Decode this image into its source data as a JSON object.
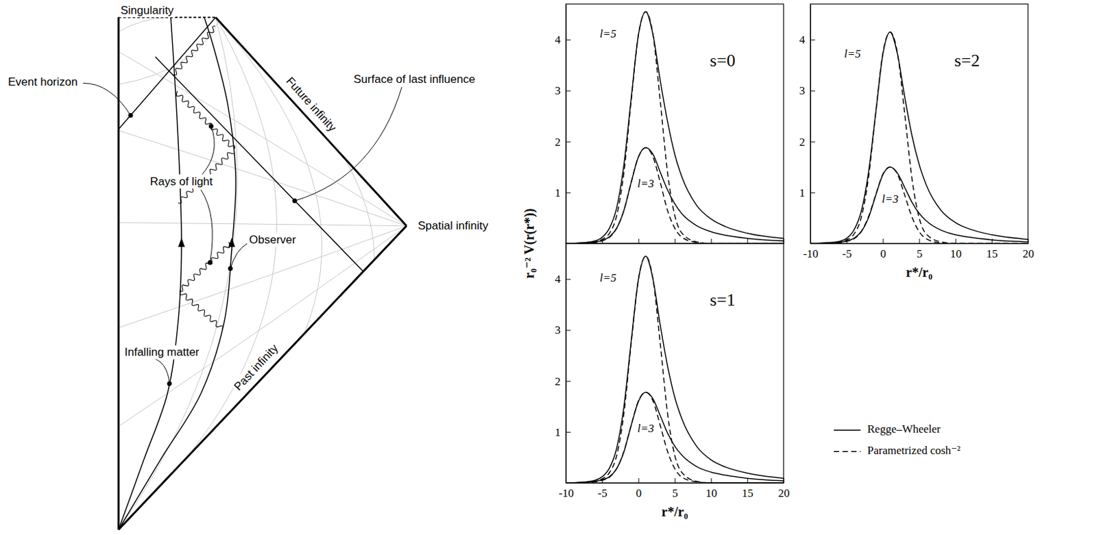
{
  "diagram": {
    "labels": {
      "singularity": "Singularity",
      "event_horizon": "Event horizon",
      "future_infinity": "Future infinity",
      "rays_of_light": "Rays of light",
      "surface_of_last_influence": "Surface of last influence",
      "spatial_infinity": "Spatial infinity",
      "observer": "Observer",
      "infalling_matter": "Infalling matter",
      "past_infinity": "Past infinity"
    }
  },
  "chart_data": [
    {
      "type": "line",
      "title": "s=0",
      "ylabel": "r₀⁻² V(r(r*))",
      "x": [
        -10,
        -8,
        -6,
        -5,
        -4,
        -3,
        -2,
        -1,
        0,
        1,
        2,
        3,
        4,
        5,
        6,
        8,
        10,
        12,
        15,
        20
      ],
      "xlim": [
        -10,
        20
      ],
      "ylim": [
        0,
        4.7
      ],
      "xticks": [
        -10,
        -5,
        0,
        5,
        10,
        15,
        20
      ],
      "yticks": [
        1,
        2,
        3,
        4
      ],
      "tick_labels": "y",
      "annotations": [
        {
          "text": "l=5",
          "x": -4.2,
          "y": 4.1
        },
        {
          "text": "l=3",
          "x": 1,
          "y": 1.15
        }
      ],
      "series": [
        {
          "line_style": "solid",
          "color": "#000000",
          "values": [
            0,
            0.01,
            0.05,
            0.12,
            0.3,
            0.7,
            1.55,
            2.85,
            4.1,
            4.55,
            4.1,
            3.2,
            2.4,
            1.75,
            1.3,
            0.75,
            0.48,
            0.33,
            0.2,
            0.1
          ]
        },
        {
          "line_style": "solid",
          "color": "#000000",
          "values": [
            0,
            0.01,
            0.03,
            0.06,
            0.13,
            0.3,
            0.65,
            1.2,
            1.7,
            1.88,
            1.75,
            1.4,
            1.05,
            0.78,
            0.58,
            0.35,
            0.23,
            0.16,
            0.1,
            0.05
          ]
        },
        {
          "line_style": "dashed",
          "color": "#000000",
          "values": [
            0,
            0,
            0.03,
            0.08,
            0.2,
            0.55,
            1.4,
            2.8,
            4.1,
            4.55,
            4.1,
            2.8,
            1.4,
            0.55,
            0.2,
            0.03,
            0,
            0,
            0,
            0
          ]
        },
        {
          "line_style": "dashed",
          "color": "#000000",
          "values": [
            0,
            0,
            0.02,
            0.05,
            0.12,
            0.3,
            0.65,
            1.2,
            1.7,
            1.88,
            1.7,
            1.2,
            0.65,
            0.3,
            0.12,
            0.02,
            0,
            0,
            0,
            0
          ]
        }
      ]
    },
    {
      "type": "line",
      "title": "s=1",
      "xlabel": "r*/r₀",
      "x": [
        -10,
        -8,
        -6,
        -5,
        -4,
        -3,
        -2,
        -1,
        0,
        1,
        2,
        3,
        4,
        5,
        6,
        8,
        10,
        12,
        15,
        20
      ],
      "xlim": [
        -10,
        20
      ],
      "ylim": [
        0,
        4.7
      ],
      "xticks": [
        -10,
        -5,
        0,
        5,
        10,
        15,
        20
      ],
      "yticks": [
        1,
        2,
        3,
        4
      ],
      "legend": "right",
      "annotations": [
        {
          "text": "l=5",
          "x": -4.2,
          "y": 4.0
        },
        {
          "text": "l=3",
          "x": 1,
          "y": 1.05
        }
      ],
      "series": [
        {
          "name": "Regge–Wheeler",
          "line_style": "solid",
          "color": "#000000",
          "values": [
            0,
            0.01,
            0.05,
            0.12,
            0.29,
            0.68,
            1.5,
            2.78,
            4.0,
            4.45,
            4.0,
            3.1,
            2.3,
            1.68,
            1.25,
            0.72,
            0.45,
            0.31,
            0.19,
            0.09
          ]
        },
        {
          "line_style": "solid",
          "color": "#000000",
          "values": [
            0,
            0.01,
            0.03,
            0.06,
            0.12,
            0.28,
            0.61,
            1.13,
            1.6,
            1.78,
            1.65,
            1.32,
            0.98,
            0.72,
            0.54,
            0.32,
            0.21,
            0.15,
            0.09,
            0.04
          ]
        },
        {
          "name": "Parametrized cosh⁻²",
          "line_style": "dashed",
          "color": "#000000",
          "values": [
            0,
            0,
            0.03,
            0.08,
            0.2,
            0.54,
            1.37,
            2.74,
            4.0,
            4.45,
            4.0,
            2.74,
            1.37,
            0.54,
            0.2,
            0.03,
            0,
            0,
            0,
            0
          ]
        },
        {
          "line_style": "dashed",
          "color": "#000000",
          "values": [
            0,
            0,
            0.02,
            0.05,
            0.11,
            0.28,
            0.62,
            1.13,
            1.61,
            1.78,
            1.61,
            1.13,
            0.62,
            0.28,
            0.11,
            0.02,
            0,
            0,
            0,
            0
          ]
        }
      ]
    },
    {
      "type": "line",
      "title": "s=2",
      "xlabel": "r*/r₀",
      "x": [
        -10,
        -8,
        -6,
        -5,
        -4,
        -3,
        -2,
        -1,
        0,
        1,
        2,
        3,
        4,
        5,
        6,
        8,
        10,
        12,
        15,
        20
      ],
      "xlim": [
        -10,
        20
      ],
      "ylim": [
        0,
        4.7
      ],
      "xticks": [
        -10,
        -5,
        0,
        5,
        10,
        15,
        20
      ],
      "yticks": [
        1,
        2,
        3,
        4
      ],
      "annotations": [
        {
          "text": "l=5",
          "x": -4.2,
          "y": 3.7
        },
        {
          "text": "l=3",
          "x": 1,
          "y": 0.85
        }
      ],
      "series": [
        {
          "line_style": "solid",
          "color": "#000000",
          "values": [
            0,
            0.01,
            0.04,
            0.1,
            0.26,
            0.62,
            1.38,
            2.55,
            3.72,
            4.15,
            3.72,
            2.88,
            2.12,
            1.55,
            1.14,
            0.65,
            0.41,
            0.28,
            0.17,
            0.08
          ]
        },
        {
          "line_style": "solid",
          "color": "#000000",
          "values": [
            0,
            0.01,
            0.02,
            0.05,
            0.1,
            0.23,
            0.5,
            0.94,
            1.35,
            1.5,
            1.38,
            1.1,
            0.81,
            0.59,
            0.44,
            0.26,
            0.17,
            0.12,
            0.07,
            0.03
          ]
        },
        {
          "line_style": "dashed",
          "color": "#000000",
          "values": [
            0,
            0,
            0.03,
            0.07,
            0.18,
            0.5,
            1.28,
            2.55,
            3.74,
            4.15,
            3.74,
            2.55,
            1.28,
            0.5,
            0.18,
            0.03,
            0,
            0,
            0,
            0
          ]
        },
        {
          "line_style": "dashed",
          "color": "#000000",
          "values": [
            0,
            0,
            0.01,
            0.04,
            0.09,
            0.23,
            0.52,
            0.95,
            1.36,
            1.5,
            1.36,
            0.95,
            0.52,
            0.23,
            0.09,
            0.01,
            0,
            0,
            0,
            0
          ]
        }
      ]
    }
  ]
}
